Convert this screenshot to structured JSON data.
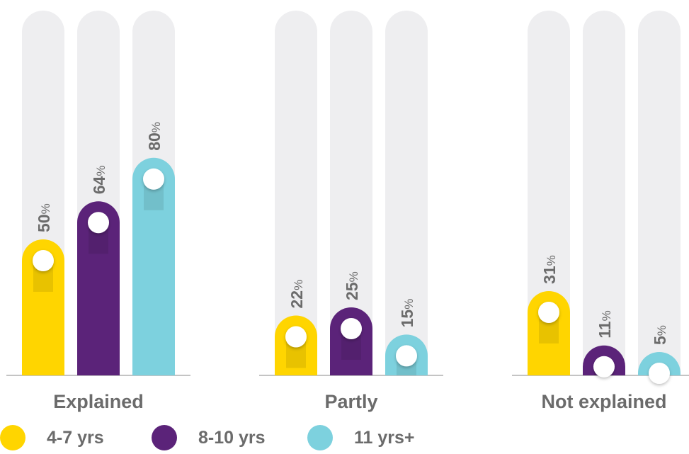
{
  "chart_data": {
    "type": "bar",
    "categories": [
      "Explained",
      "Partly",
      "Not explained"
    ],
    "series": [
      {
        "name": "4-7 yrs",
        "color": "#FFD500",
        "values": [
          50,
          22,
          31
        ]
      },
      {
        "name": "8-10 yrs",
        "color": "#5B2379",
        "values": [
          64,
          25,
          11
        ]
      },
      {
        "name": "11 yrs+",
        "color": "#7DD1DE",
        "values": [
          80,
          15,
          5
        ]
      }
    ],
    "value_suffix": "%",
    "ylim": [
      0,
      100
    ],
    "track_color": "#EEEEF0",
    "legend_position": "bottom-left"
  }
}
